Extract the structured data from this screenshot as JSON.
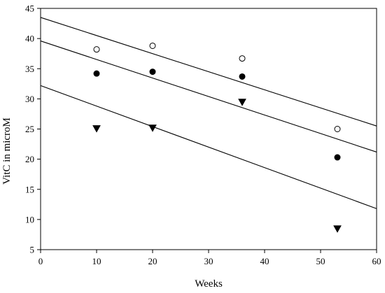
{
  "chart_data": {
    "type": "scatter",
    "xlabel": "Weeks",
    "ylabel": "VitC in microM",
    "xlim": [
      0,
      60
    ],
    "ylim": [
      5,
      45
    ],
    "xticks": [
      0,
      10,
      20,
      30,
      40,
      50,
      60
    ],
    "yticks": [
      5,
      10,
      15,
      20,
      25,
      30,
      35,
      40,
      45
    ],
    "grid": false,
    "series": [
      {
        "marker": "open-circle",
        "x": [
          10,
          20,
          36,
          53
        ],
        "y": [
          38.2,
          38.8,
          36.7,
          25.0
        ],
        "fit": {
          "intercept": 43.5,
          "slope": -0.3
        }
      },
      {
        "marker": "filled-circle",
        "x": [
          10,
          20,
          36,
          53
        ],
        "y": [
          34.2,
          34.5,
          33.7,
          20.3
        ],
        "fit": {
          "intercept": 39.6,
          "slope": -0.307
        }
      },
      {
        "marker": "filled-triangle-down",
        "x": [
          10,
          20,
          36,
          53
        ],
        "y": [
          25.1,
          25.2,
          29.5,
          8.5
        ],
        "fit": {
          "intercept": 32.2,
          "slope": -0.34
        }
      }
    ]
  }
}
